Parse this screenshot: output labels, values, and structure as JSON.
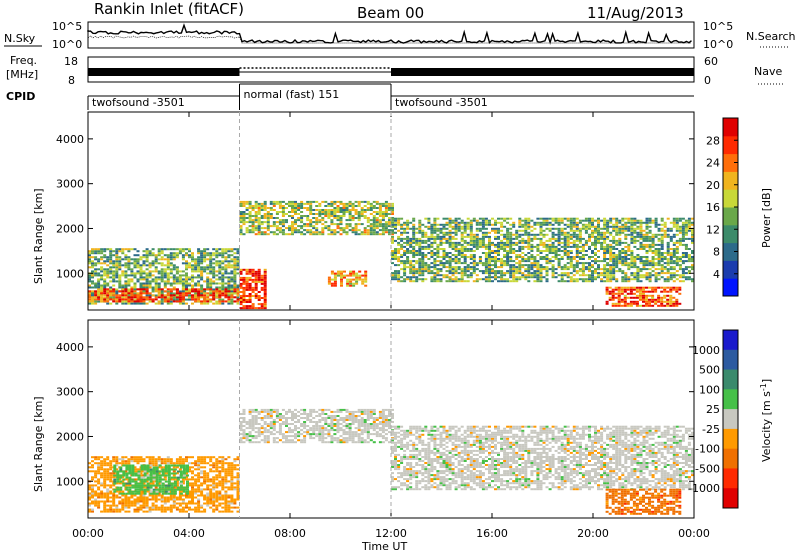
{
  "header": {
    "station": "Rankin Inlet (fitACF)",
    "beam": "Beam 00",
    "date": "11/Aug/2013"
  },
  "strips": {
    "nsky": {
      "label": "N.Sky",
      "tick_top": "10^5",
      "tick_bottom": "10^0",
      "right_label": "N.Search",
      "right_tick_top": "10^5",
      "right_tick_bottom": "10^0"
    },
    "freq": {
      "label_line1": "Freq.",
      "label_line2": "[MHz]",
      "tick_top": "18",
      "tick_bottom": "8",
      "right_label": "Nave",
      "right_tick_top": "60",
      "right_tick_bottom": "0"
    },
    "cpid": {
      "label": "CPID"
    }
  },
  "chart_data": [
    {
      "type": "table",
      "name": "CPID",
      "segments": [
        {
          "start": "00:00",
          "end": "06:00",
          "label": "twofsound -3501"
        },
        {
          "start": "06:00",
          "end": "12:00",
          "label": "normal (fast) 151"
        },
        {
          "start": "12:00",
          "end": "24:00",
          "label": "twofsound -3501"
        }
      ]
    },
    {
      "type": "heatmap",
      "ylabel": "Slant Range [km]",
      "ylim": [
        180,
        4600
      ],
      "yticks": [
        1000,
        2000,
        3000,
        4000
      ],
      "colorbar": {
        "label": "Power [dB]",
        "ticks": [
          4,
          8,
          12,
          16,
          20,
          24,
          28
        ],
        "range": [
          0,
          32
        ]
      },
      "echo_regions": [
        {
          "t0": 0,
          "t1": 6,
          "r0": 300,
          "r1": 1550,
          "level": 14
        },
        {
          "t0": 0,
          "t1": 6,
          "r0": 350,
          "r1": 650,
          "level": 26
        },
        {
          "t0": 6,
          "t1": 12,
          "r0": 1850,
          "r1": 2600,
          "level": 16
        },
        {
          "t0": 6,
          "t1": 7,
          "r0": 200,
          "r1": 1100,
          "level": 28
        },
        {
          "t0": 9.5,
          "t1": 11,
          "r0": 700,
          "r1": 1050,
          "level": 22
        },
        {
          "t0": 12,
          "t1": 24,
          "r0": 800,
          "r1": 2200,
          "level": 14
        },
        {
          "t0": 20.5,
          "t1": 23.5,
          "r0": 250,
          "r1": 700,
          "level": 26
        }
      ]
    },
    {
      "type": "heatmap",
      "ylabel": "Slant Range [km]",
      "ylim": [
        180,
        4600
      ],
      "yticks": [
        1000,
        2000,
        3000,
        4000
      ],
      "colorbar": {
        "label": "Velocity [m s^-1]",
        "ticks": [
          1000,
          500,
          100,
          25,
          -25,
          -100,
          -500,
          -1000
        ]
      },
      "echo_regions": [
        {
          "t0": 0,
          "t1": 6,
          "r0": 300,
          "r1": 1550,
          "level": "-100"
        },
        {
          "t0": 1,
          "t1": 4,
          "r0": 700,
          "r1": 1350,
          "level": "100"
        },
        {
          "t0": 6,
          "t1": 12,
          "r0": 1850,
          "r1": 2600,
          "level": "25"
        },
        {
          "t0": 12,
          "t1": 24,
          "r0": 800,
          "r1": 2200,
          "level": "25"
        },
        {
          "t0": 20.5,
          "t1": 23.5,
          "r0": 250,
          "r1": 800,
          "level": "-500"
        }
      ]
    }
  ],
  "xaxis": {
    "label": "Time UT",
    "ticks": [
      "00:00",
      "04:00",
      "08:00",
      "12:00",
      "16:00",
      "20:00",
      "00:00"
    ],
    "range_hours": [
      0,
      24
    ]
  },
  "colors": {
    "power_scale": [
      "#0014ff",
      "#1b3cae",
      "#2c6a8a",
      "#3c8b6a",
      "#6aa84a",
      "#c8d838",
      "#f0b41e",
      "#ff6e0a",
      "#ff2a00",
      "#e00000"
    ],
    "velocity_scale": [
      "#1a1acc",
      "#2c5aa0",
      "#3a8a6c",
      "#46c048",
      "#c8c8c0",
      "#ff9a00",
      "#f07000",
      "#ff2a00",
      "#e00000"
    ],
    "ground_scatter": "#c8c8c0"
  }
}
